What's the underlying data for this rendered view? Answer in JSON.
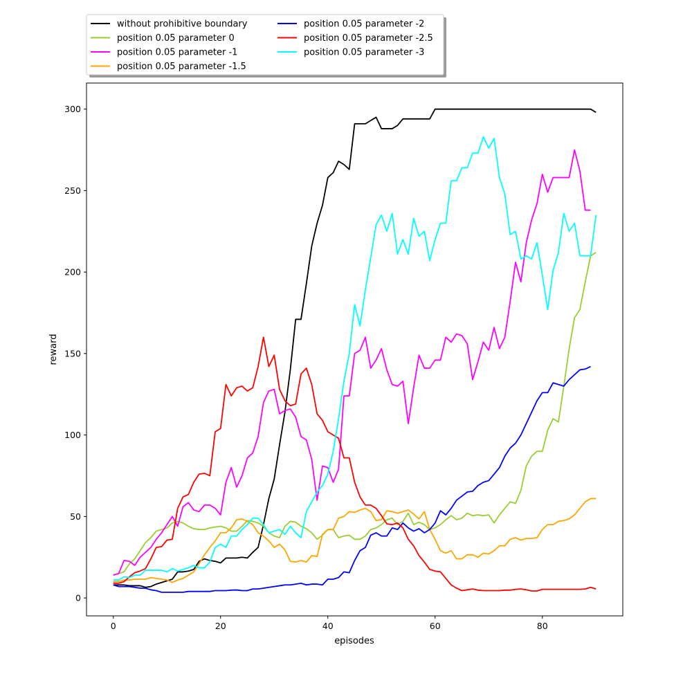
{
  "chart_data": {
    "type": "line",
    "xlabel": "episodes",
    "ylabel": "reward",
    "xlim": [
      -5,
      95
    ],
    "ylim": [
      -11,
      316
    ],
    "xticks": [
      0,
      20,
      40,
      60,
      80
    ],
    "yticks": [
      0,
      50,
      100,
      150,
      200,
      250,
      300
    ],
    "grid": false,
    "legend_position": "above-top-left",
    "series": [
      {
        "name": "without prohibitive boundary",
        "color": "#000000",
        "values": [
          8,
          8,
          8,
          7.5,
          7.5,
          7.5,
          6.5,
          7,
          8.5,
          9.5,
          10.5,
          11.5,
          16,
          16,
          16.5,
          17.5,
          22.5,
          24,
          23,
          22.5,
          21.5,
          24.5,
          24.5,
          24.5,
          25,
          24.5,
          28,
          31,
          45,
          61,
          73,
          94,
          114,
          140,
          171,
          171,
          193,
          216,
          230,
          241,
          258,
          261,
          268,
          266,
          263,
          291,
          291,
          291,
          293,
          295,
          288,
          288,
          288,
          290,
          294,
          294,
          294,
          294,
          294,
          294,
          300,
          300,
          300,
          300,
          300,
          300,
          300,
          300,
          300,
          300,
          300,
          300,
          300,
          300,
          300,
          300,
          300,
          300,
          300,
          300,
          300,
          300,
          300,
          300,
          300,
          300,
          300,
          300,
          300,
          300,
          298
        ]
      },
      {
        "name": "position 0.05 parameter 0",
        "color": "#9acd32",
        "values": [
          14,
          15,
          16,
          21,
          24,
          29,
          34,
          37,
          41,
          42,
          43,
          46,
          47,
          46,
          44,
          42.5,
          42,
          42,
          43,
          43.5,
          44,
          43,
          41,
          41,
          44,
          47.5,
          47,
          46,
          44,
          40,
          38,
          37,
          44,
          47,
          46.5,
          44,
          42.5,
          40,
          36,
          38.5,
          42,
          42,
          37,
          38,
          38.5,
          36,
          36,
          38,
          42,
          43,
          45,
          48,
          49,
          45,
          47,
          52,
          45,
          46.5,
          45,
          42,
          43,
          45,
          48,
          50.5,
          48,
          49,
          52,
          50.5,
          51,
          50.5,
          51,
          46,
          51,
          55,
          59,
          58,
          66,
          81,
          87,
          90,
          90,
          103,
          110,
          108,
          130,
          153,
          172,
          177,
          194,
          210,
          212
        ]
      },
      {
        "name": "position 0.05 parameter -1",
        "color": "#ff00ff",
        "values": [
          14,
          15,
          23,
          22.5,
          20,
          25,
          28,
          31,
          36,
          40,
          45,
          50,
          44,
          56,
          58.5,
          54,
          53,
          57,
          57,
          55,
          51,
          71,
          80,
          68,
          75,
          86,
          89,
          99,
          120,
          127,
          128,
          113,
          115,
          116,
          111,
          99,
          97,
          85,
          60,
          81,
          80,
          71,
          79,
          124,
          124,
          150,
          152,
          160,
          141,
          146,
          153,
          140,
          131,
          130,
          133,
          107,
          129,
          149,
          141,
          141,
          146,
          146,
          160,
          157,
          162,
          161,
          156,
          134,
          145,
          157,
          152,
          166,
          153,
          160,
          182,
          206,
          194,
          218,
          232,
          242,
          260,
          249,
          258,
          258,
          258,
          258,
          275,
          262,
          238,
          238
        ]
      },
      {
        "name": "position 0.05 parameter -1.5",
        "color": "#ffa500",
        "values": [
          10,
          10,
          11,
          11,
          11.5,
          11.5,
          11.5,
          12.5,
          12,
          11.5,
          11,
          9.5,
          11,
          12,
          14,
          16,
          21,
          26.5,
          31,
          35,
          40,
          40,
          43,
          48,
          48.5,
          47,
          45,
          40,
          38,
          35,
          31,
          33,
          29.5,
          22.5,
          22,
          23,
          22,
          26,
          25.5,
          39,
          42,
          42,
          49,
          50,
          53,
          52.5,
          54,
          55,
          53,
          47.5,
          48,
          53.5,
          53,
          52,
          53,
          54,
          51.5,
          48.5,
          53,
          42,
          36,
          29,
          27.5,
          29,
          24,
          24,
          26.5,
          26.5,
          25,
          27.5,
          27,
          29,
          32,
          32,
          36,
          37,
          35.5,
          36.5,
          36.5,
          37,
          42,
          45,
          45,
          47,
          47.5,
          48.5,
          51,
          55,
          59,
          61,
          61
        ]
      },
      {
        "name": "position 0.05 parameter -2",
        "color": "#0000ff",
        "values": [
          8,
          7,
          7,
          7,
          6.5,
          6,
          6,
          5,
          4.5,
          3.5,
          3.5,
          3.5,
          3.5,
          3.5,
          4,
          4,
          4,
          4,
          4,
          4.5,
          4.5,
          4.5,
          4.8,
          4.9,
          4.5,
          4.5,
          5.5,
          5.5,
          6,
          6.5,
          7,
          7.5,
          8,
          8,
          8.5,
          9,
          8,
          8.5,
          8.5,
          8,
          11.5,
          11.5,
          12.5,
          16,
          15.5,
          23,
          29,
          31,
          38.5,
          40,
          38,
          38,
          43,
          42,
          46,
          43,
          41,
          42.5,
          40,
          42,
          46,
          53.5,
          51,
          55,
          60,
          62.5,
          65,
          65.5,
          69,
          71,
          72,
          76,
          80,
          87,
          92,
          95,
          100,
          107,
          114,
          121,
          126,
          126,
          132,
          131,
          130,
          134,
          137,
          140,
          140.5,
          142
        ]
      },
      {
        "name": "position 0.05 parameter -2.5",
        "color": "#ff0000",
        "values": [
          9,
          9,
          10,
          13,
          15.5,
          16.5,
          18,
          24,
          31,
          31.5,
          35.5,
          36,
          55,
          62,
          63.5,
          71,
          76,
          76.5,
          75,
          102,
          104,
          131,
          124,
          129,
          130,
          127,
          129,
          142,
          160,
          142,
          149,
          128,
          121,
          118,
          119,
          137.5,
          141,
          131,
          113,
          109,
          102,
          100,
          98,
          86,
          86,
          71,
          62,
          57,
          57,
          55,
          50.5,
          45.5,
          45,
          46,
          43,
          36,
          32,
          26,
          22,
          17.5,
          16.5,
          16,
          12,
          8,
          6,
          4.5,
          5,
          5.5,
          4.8,
          4.5,
          4.5,
          4.5,
          4.5,
          4.8,
          4.8,
          5.3,
          5.5,
          5,
          4.3,
          4.3,
          5.3,
          5.3,
          5.3,
          5.3,
          5.3,
          5.3,
          5.3,
          5.3,
          5.5,
          6.5,
          5.5
        ]
      },
      {
        "name": "position 0.05 parameter -3",
        "color": "#00ffff",
        "values": [
          11,
          11,
          13,
          12.5,
          14,
          14,
          17,
          17,
          17,
          17,
          16,
          18,
          16.5,
          17.5,
          18.5,
          20,
          18.5,
          18.5,
          22,
          31,
          33,
          31,
          38,
          38,
          42,
          45,
          49,
          49,
          45,
          40,
          41,
          42,
          39,
          44,
          40,
          37,
          53,
          59,
          65,
          69,
          76,
          90,
          110,
          133,
          150,
          180,
          167,
          189,
          209,
          229,
          235,
          225,
          236,
          211,
          220,
          211,
          233,
          222,
          225,
          207,
          220,
          230,
          230,
          256,
          256,
          264,
          264,
          273,
          273,
          283,
          276,
          282,
          258,
          248,
          223,
          225,
          208,
          210,
          208,
          218,
          198,
          177,
          201,
          212,
          236,
          225,
          230,
          210,
          210,
          210,
          235
        ]
      }
    ]
  }
}
